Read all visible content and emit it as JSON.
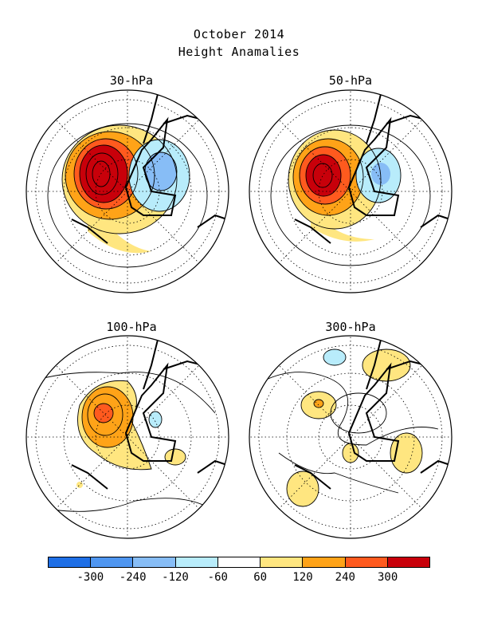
{
  "title": {
    "line1": "October 2014",
    "line2": "Height Anamalies"
  },
  "panels": [
    {
      "label": "30-hPa"
    },
    {
      "label": "50-hPa"
    },
    {
      "label": "100-hPa"
    },
    {
      "label": "300-hPa"
    }
  ],
  "colorbar": {
    "colors": [
      "#1e6fe6",
      "#4f96f0",
      "#87bdf6",
      "#b8ecfb",
      "#ffffff",
      "#ffe680",
      "#ffa318",
      "#ff5a1e",
      "#c8000a"
    ],
    "tick_labels": [
      "-300",
      "-240",
      "-120",
      "-60",
      "60",
      "120",
      "240",
      "300"
    ]
  }
}
